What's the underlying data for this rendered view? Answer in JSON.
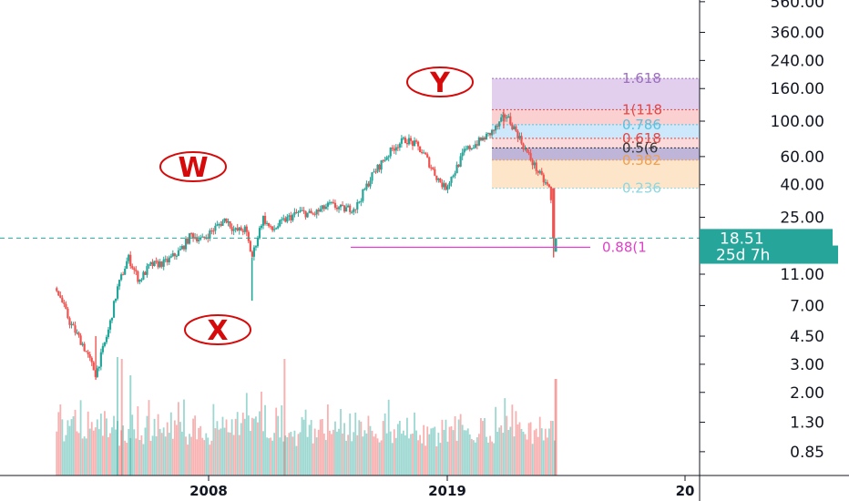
{
  "chart_data": {
    "type": "candlestick",
    "y_scale": "log",
    "y_ticks": [
      "560.00",
      "360.00",
      "240.00",
      "160.00",
      "100.00",
      "60.00",
      "40.00",
      "25.00",
      "11.00",
      "7.00",
      "4.50",
      "3.00",
      "2.00",
      "1.30",
      "0.85"
    ],
    "x_ticks": [
      "2008",
      "2019",
      "20"
    ],
    "price_label": "18.51",
    "countdown_label": "25d 7h",
    "price_line_value": 18.51,
    "wave_labels": [
      "W",
      "X",
      "Y"
    ],
    "fib_levels": [
      {
        "label": "1.618",
        "value": 185,
        "color": "#9c6fbf"
      },
      {
        "label": "1(118",
        "value": 118,
        "color": "#e04848"
      },
      {
        "label": "0.786",
        "value": 95,
        "color": "#5bc0de"
      },
      {
        "label": "0.618",
        "value": 78,
        "color": "#e04848"
      },
      {
        "label": "0.5(6",
        "value": 68,
        "color": "#333333"
      },
      {
        "label": "0.382",
        "value": 57,
        "color": "#f0a050"
      },
      {
        "label": "0.236",
        "value": 38,
        "color": "#8fd6e0"
      }
    ],
    "target_line": {
      "label": "0.88(1",
      "value": 16.2
    },
    "series": [
      {
        "name": "price_path",
        "points": [
          [
            2001.0,
            9.0
          ],
          [
            2001.6,
            5.5
          ],
          [
            2002.2,
            4.0
          ],
          [
            2002.8,
            2.6
          ],
          [
            2003.4,
            5.0
          ],
          [
            2003.8,
            9.0
          ],
          [
            2004.3,
            14.0
          ],
          [
            2004.8,
            10.0
          ],
          [
            2005.3,
            12.5
          ],
          [
            2006.0,
            13.0
          ],
          [
            2006.7,
            15.5
          ],
          [
            2007.2,
            19.5
          ],
          [
            2007.7,
            18.0
          ],
          [
            2008.3,
            21.5
          ],
          [
            2008.8,
            24.5
          ],
          [
            2009.2,
            20.5
          ],
          [
            2009.7,
            21.0
          ],
          [
            2010.0,
            14.0
          ],
          [
            2010.5,
            25.0
          ],
          [
            2010.9,
            20.5
          ],
          [
            2011.5,
            24.0
          ],
          [
            2012.2,
            27.0
          ],
          [
            2012.8,
            26.0
          ],
          [
            2013.6,
            30.0
          ],
          [
            2014.2,
            28.0
          ],
          [
            2014.8,
            29.0
          ],
          [
            2015.5,
            45.0
          ],
          [
            2016.1,
            58.0
          ],
          [
            2016.6,
            70.0
          ],
          [
            2017.1,
            77.0
          ],
          [
            2017.6,
            70.0
          ],
          [
            2018.0,
            60.0
          ],
          [
            2018.5,
            45.0
          ],
          [
            2018.9,
            38.0
          ],
          [
            2019.4,
            50.0
          ],
          [
            2019.8,
            65.0
          ],
          [
            2020.3,
            72.0
          ],
          [
            2020.9,
            82.0
          ],
          [
            2021.3,
            92.0
          ],
          [
            2021.7,
            110.0
          ],
          [
            2022.2,
            85.0
          ],
          [
            2022.6,
            66.0
          ],
          [
            2023.0,
            53.0
          ],
          [
            2023.4,
            43.0
          ],
          [
            2023.7,
            38.0
          ],
          [
            2024.0,
            18.5
          ]
        ]
      },
      {
        "name": "low_path",
        "points": [
          [
            2003.0,
            2.4
          ],
          [
            2011.0,
            7.5
          ],
          [
            2024.0,
            14.0
          ]
        ]
      }
    ],
    "volume_levels": [
      0.35,
      0.5,
      0.3,
      0.6,
      0.45,
      0.4,
      0.55,
      0.7,
      0.35,
      0.5
    ]
  }
}
